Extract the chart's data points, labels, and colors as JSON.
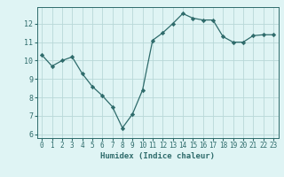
{
  "x": [
    0,
    1,
    2,
    3,
    4,
    5,
    6,
    7,
    8,
    9,
    10,
    11,
    12,
    13,
    14,
    15,
    16,
    17,
    18,
    19,
    20,
    21,
    22,
    23
  ],
  "y": [
    10.3,
    9.7,
    10.0,
    10.2,
    9.3,
    8.6,
    8.1,
    7.5,
    6.35,
    7.1,
    8.4,
    11.1,
    11.5,
    12.0,
    12.55,
    12.3,
    12.2,
    12.2,
    11.3,
    11.0,
    11.0,
    11.35,
    11.4,
    11.4
  ],
  "line_color": "#2e6b6b",
  "marker": "D",
  "marker_size": 2.2,
  "bg_color": "#dff4f4",
  "grid_color": "#b8d8d8",
  "xlabel": "Humidex (Indice chaleur)",
  "xlim": [
    -0.5,
    23.5
  ],
  "ylim": [
    5.8,
    12.9
  ],
  "yticks": [
    6,
    7,
    8,
    9,
    10,
    11,
    12
  ],
  "xticks": [
    0,
    1,
    2,
    3,
    4,
    5,
    6,
    7,
    8,
    9,
    10,
    11,
    12,
    13,
    14,
    15,
    16,
    17,
    18,
    19,
    20,
    21,
    22,
    23
  ],
  "title_color": "#2e6b6b",
  "label_color": "#2e6b6b",
  "tick_color": "#2e6b6b",
  "spine_color": "#2e6b6b",
  "tick_fontsize": 5.5,
  "xlabel_fontsize": 6.5
}
